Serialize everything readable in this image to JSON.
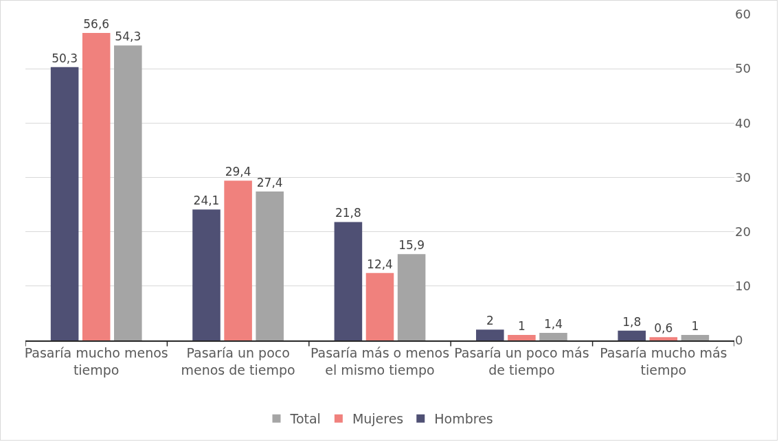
{
  "chart_data": {
    "type": "bar",
    "categories": [
      "Pasaría mucho menos tiempo",
      "Pasaría un poco menos de tiempo",
      "Pasaría más o menos el mismo tiempo",
      "Pasaría un poco más de tiempo",
      "Pasaría mucho más tiempo"
    ],
    "series": [
      {
        "name": "Hombres",
        "color": "#4f5074",
        "values": [
          50.3,
          24.1,
          21.8,
          2,
          1.8
        ],
        "value_labels": [
          "50,3",
          "24,1",
          "21,8",
          "2",
          "1,8"
        ]
      },
      {
        "name": "Mujeres",
        "color": "#f0817d",
        "values": [
          56.6,
          29.4,
          12.4,
          1,
          0.6
        ],
        "value_labels": [
          "56,6",
          "29,4",
          "12,4",
          "1",
          "0,6"
        ]
      },
      {
        "name": "Total",
        "color": "#a5a5a5",
        "values": [
          54.3,
          27.4,
          15.9,
          1.4,
          1
        ],
        "value_labels": [
          "54,3",
          "27,4",
          "15,9",
          "1,4",
          "1"
        ]
      }
    ],
    "ylim": [
      0,
      60
    ],
    "yticks": [
      0,
      10,
      20,
      30,
      40,
      50,
      60
    ],
    "grid": "y",
    "legend": "bottom"
  }
}
